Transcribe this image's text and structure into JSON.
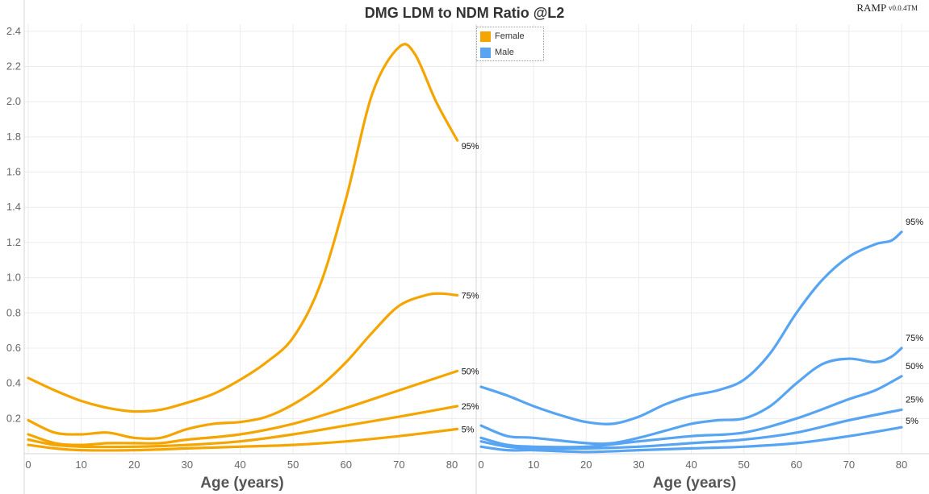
{
  "title": "DMG LDM to NDM Ratio @L2",
  "version": {
    "name": "RAMP",
    "version": "v0.0.4",
    "mark": "TM"
  },
  "legend": [
    {
      "label": "Female",
      "color": "#f5a500"
    },
    {
      "label": "Male",
      "color": "#56a4f2"
    }
  ],
  "chart_data": [
    {
      "type": "line",
      "panel": "Female",
      "color": "#f5a500",
      "xlabel": "Age (years)",
      "ylabel": "",
      "xlim": [
        0,
        82
      ],
      "ylim": [
        0,
        2.45
      ],
      "x_ticks": [
        0,
        10,
        20,
        30,
        40,
        50,
        60,
        70,
        80
      ],
      "y_ticks": [
        0.2,
        0.4,
        0.6,
        0.8,
        1.0,
        1.2,
        1.4,
        1.6,
        1.8,
        2.0,
        2.2,
        2.4
      ],
      "y_tick_labels": [
        "0.2",
        "0.4",
        "0.6",
        "0.8",
        "1.0",
        "1.2",
        "1.4",
        "1.6",
        "1.8",
        "2.0",
        "2.2",
        "2.4"
      ],
      "grid": true,
      "series": [
        {
          "name": "95%",
          "x": [
            0,
            5,
            10,
            15,
            20,
            25,
            30,
            35,
            40,
            45,
            50,
            55,
            60,
            65,
            70,
            73,
            77,
            81
          ],
          "y": [
            0.43,
            0.36,
            0.3,
            0.26,
            0.24,
            0.25,
            0.29,
            0.34,
            0.42,
            0.52,
            0.66,
            0.95,
            1.45,
            2.05,
            2.31,
            2.27,
            2.0,
            1.78
          ]
        },
        {
          "name": "75%",
          "x": [
            0,
            5,
            10,
            15,
            20,
            25,
            30,
            35,
            40,
            45,
            50,
            55,
            60,
            65,
            70,
            75,
            78,
            81
          ],
          "y": [
            0.19,
            0.12,
            0.11,
            0.12,
            0.09,
            0.09,
            0.14,
            0.17,
            0.18,
            0.21,
            0.28,
            0.38,
            0.52,
            0.69,
            0.84,
            0.9,
            0.91,
            0.9
          ]
        },
        {
          "name": "50%",
          "x": [
            0,
            5,
            10,
            15,
            20,
            25,
            30,
            40,
            50,
            60,
            70,
            81
          ],
          "y": [
            0.11,
            0.06,
            0.05,
            0.06,
            0.06,
            0.06,
            0.08,
            0.11,
            0.17,
            0.26,
            0.36,
            0.47
          ]
        },
        {
          "name": "25%",
          "x": [
            0,
            5,
            10,
            20,
            30,
            40,
            50,
            60,
            70,
            81
          ],
          "y": [
            0.08,
            0.05,
            0.04,
            0.04,
            0.05,
            0.07,
            0.11,
            0.16,
            0.21,
            0.27
          ]
        },
        {
          "name": "5%",
          "x": [
            0,
            5,
            10,
            20,
            30,
            40,
            50,
            60,
            70,
            81
          ],
          "y": [
            0.05,
            0.03,
            0.02,
            0.02,
            0.03,
            0.04,
            0.05,
            0.07,
            0.1,
            0.14
          ]
        }
      ]
    },
    {
      "type": "line",
      "panel": "Male",
      "color": "#56a4f2",
      "xlabel": "Age (years)",
      "ylabel": "",
      "xlim": [
        -1,
        82
      ],
      "ylim": [
        0,
        2.45
      ],
      "x_ticks": [
        0,
        10,
        20,
        30,
        40,
        50,
        60,
        70,
        80
      ],
      "grid": true,
      "series": [
        {
          "name": "95%",
          "x": [
            0,
            5,
            10,
            15,
            20,
            25,
            30,
            35,
            40,
            45,
            50,
            55,
            60,
            65,
            70,
            75,
            78,
            80
          ],
          "y": [
            0.38,
            0.33,
            0.27,
            0.22,
            0.18,
            0.17,
            0.21,
            0.28,
            0.33,
            0.36,
            0.42,
            0.57,
            0.8,
            0.99,
            1.12,
            1.19,
            1.21,
            1.26
          ]
        },
        {
          "name": "75%",
          "x": [
            0,
            5,
            10,
            20,
            25,
            30,
            35,
            40,
            45,
            50,
            55,
            60,
            65,
            70,
            75,
            78,
            80
          ],
          "y": [
            0.16,
            0.1,
            0.09,
            0.06,
            0.06,
            0.09,
            0.13,
            0.17,
            0.19,
            0.2,
            0.27,
            0.4,
            0.51,
            0.54,
            0.52,
            0.55,
            0.6
          ]
        },
        {
          "name": "50%",
          "x": [
            0,
            5,
            10,
            20,
            30,
            40,
            50,
            60,
            70,
            75,
            80
          ],
          "y": [
            0.09,
            0.05,
            0.04,
            0.04,
            0.07,
            0.1,
            0.12,
            0.2,
            0.31,
            0.36,
            0.44
          ]
        },
        {
          "name": "25%",
          "x": [
            0,
            5,
            10,
            20,
            30,
            40,
            50,
            60,
            70,
            80
          ],
          "y": [
            0.07,
            0.04,
            0.03,
            0.03,
            0.04,
            0.06,
            0.08,
            0.12,
            0.19,
            0.25
          ]
        },
        {
          "name": "5%",
          "x": [
            0,
            5,
            10,
            20,
            30,
            40,
            50,
            60,
            70,
            80
          ],
          "y": [
            0.04,
            0.02,
            0.02,
            0.01,
            0.02,
            0.03,
            0.04,
            0.06,
            0.1,
            0.15
          ]
        }
      ]
    }
  ]
}
